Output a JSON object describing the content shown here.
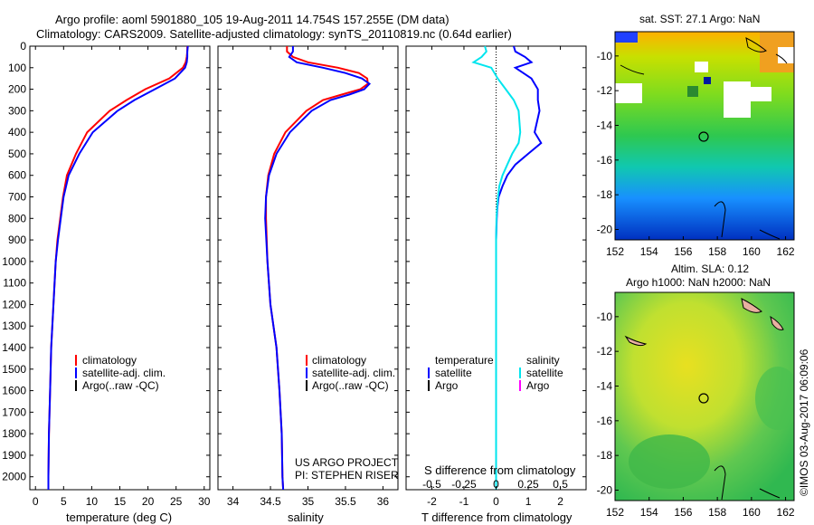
{
  "header": {
    "title_line1": "Argo profile: aoml 5901880_105 19-Aug-2011 14.754S 157.255E (DM data)",
    "title_line2": "Climatology: CARS2009. Satellite-adjusted climatology: synTS_20110819.nc (0.64d earlier)"
  },
  "colors": {
    "climatology": "#ff0000",
    "satellite": "#0000ff",
    "argo": "#000000",
    "salinity_sat": "#00e5ee",
    "salinity_argo": "#ff00ff"
  },
  "chart_data": [
    {
      "type": "line",
      "id": "temperature",
      "xlabel": "temperature (deg C)",
      "xlim": [
        -1,
        31
      ],
      "xticks": [
        0,
        5,
        10,
        15,
        20,
        25,
        30
      ],
      "ylim": [
        2060,
        0
      ],
      "yticks": [
        0,
        100,
        200,
        300,
        400,
        500,
        600,
        700,
        800,
        900,
        1000,
        1100,
        1200,
        1300,
        1400,
        1500,
        1600,
        1700,
        1800,
        1900,
        2000
      ],
      "legend": {
        "placement": "lower-left",
        "items": [
          "climatology",
          "satellite-adj. clim.",
          "Argo(..raw -QC)"
        ]
      },
      "series": [
        {
          "name": "climatology",
          "y": [
            0,
            25,
            50,
            75,
            100,
            150,
            200,
            250,
            300,
            400,
            500,
            600,
            700,
            800,
            900,
            1000,
            1200,
            1400,
            1600,
            1800,
            2000,
            2060
          ],
          "values": [
            27.0,
            27.0,
            26.9,
            26.7,
            26.2,
            23.8,
            19.5,
            16.2,
            13.2,
            9.2,
            7.2,
            5.6,
            4.9,
            4.4,
            3.9,
            3.6,
            3.2,
            2.8,
            2.6,
            2.4,
            2.3,
            2.3
          ]
        },
        {
          "name": "satellite-adj. clim.",
          "y": [
            0,
            25,
            50,
            75,
            100,
            150,
            200,
            250,
            300,
            400,
            500,
            600,
            700,
            800,
            900,
            1000,
            1200,
            1400,
            1600,
            1800,
            2000,
            2060
          ],
          "values": [
            27.1,
            27.0,
            27.0,
            26.9,
            26.6,
            24.8,
            21.2,
            17.6,
            14.6,
            10.2,
            7.8,
            5.9,
            5.0,
            4.5,
            4.0,
            3.6,
            3.2,
            2.8,
            2.6,
            2.4,
            2.3,
            2.3
          ]
        }
      ]
    },
    {
      "type": "line",
      "id": "salinity",
      "xlabel": "salinity",
      "xlim": [
        33.8,
        36.2
      ],
      "xticks": [
        34,
        34.5,
        35,
        35.5,
        36
      ],
      "ylim": [
        2060,
        0
      ],
      "legend": {
        "placement": "lower-right",
        "items": [
          "climatology",
          "satellite-adj. clim.",
          "Argo(..raw -QC)"
        ]
      },
      "annotations": [
        "US ARGO PROJECT",
        "PI: STEPHEN RISER"
      ],
      "series": [
        {
          "name": "climatology",
          "y": [
            0,
            25,
            50,
            75,
            100,
            125,
            150,
            175,
            200,
            225,
            250,
            300,
            400,
            500,
            600,
            700,
            800,
            1000,
            1200,
            1400,
            1600,
            1800,
            2000,
            2060
          ],
          "values": [
            34.72,
            34.72,
            34.8,
            35.0,
            35.4,
            35.68,
            35.79,
            35.8,
            35.7,
            35.45,
            35.2,
            34.98,
            34.7,
            34.55,
            34.47,
            34.44,
            34.44,
            34.46,
            34.5,
            34.58,
            34.62,
            34.65,
            34.66,
            34.67
          ]
        },
        {
          "name": "satellite-adj. clim.",
          "y": [
            0,
            25,
            50,
            75,
            100,
            125,
            150,
            175,
            200,
            225,
            250,
            300,
            400,
            500,
            600,
            700,
            800,
            1000,
            1200,
            1400,
            1600,
            1800,
            2000,
            2060
          ],
          "values": [
            34.8,
            34.8,
            34.75,
            34.85,
            35.2,
            35.5,
            35.72,
            35.82,
            35.75,
            35.55,
            35.3,
            35.05,
            34.76,
            34.58,
            34.48,
            34.44,
            34.43,
            34.46,
            34.5,
            34.58,
            34.62,
            34.65,
            34.66,
            34.67
          ]
        }
      ]
    },
    {
      "type": "line",
      "id": "difference",
      "xlabel_bottom": "T difference from climatology",
      "xlabel_top": "S difference from climatology",
      "xlim": [
        -2.8,
        2.8
      ],
      "xticks_T": [
        -2,
        -1,
        0,
        1,
        2
      ],
      "xticks_S_labels": [
        "-0.5",
        "-0.25",
        "0",
        "0.25",
        "0.5"
      ],
      "legend": {
        "placement": "lower",
        "columns": [
          {
            "header": "temperature",
            "items": [
              "satellite",
              "Argo"
            ]
          },
          {
            "header": "salinity",
            "items": [
              "satellite",
              "Argo"
            ]
          }
        ]
      },
      "series": [
        {
          "name": "temperature satellite",
          "y": [
            0,
            25,
            50,
            75,
            100,
            150,
            200,
            250,
            300,
            400,
            450,
            500,
            550,
            600,
            650,
            700,
            750,
            800,
            900,
            1000,
            1200,
            1400,
            1600,
            1800,
            2000,
            2060
          ],
          "values": [
            0.55,
            0.6,
            0.9,
            1.1,
            0.6,
            1.1,
            1.3,
            1.3,
            1.35,
            1.2,
            1.4,
            1.0,
            0.6,
            0.35,
            0.2,
            0.08,
            0.04,
            0.02,
            0.0,
            0.0,
            0.0,
            0.0,
            0.0,
            0.0,
            0.0,
            0.0
          ]
        },
        {
          "name": "salinity satellite",
          "y": [
            0,
            25,
            50,
            75,
            100,
            150,
            200,
            250,
            300,
            400,
            450,
            500,
            550,
            600,
            650,
            700,
            750,
            800,
            900,
            1000,
            1200,
            1400,
            1600,
            1800,
            2000,
            2060
          ],
          "values": [
            -0.35,
            -0.3,
            -0.45,
            -0.7,
            -0.15,
            0.05,
            0.3,
            0.55,
            0.7,
            0.75,
            0.7,
            0.5,
            0.35,
            0.2,
            0.1,
            0.06,
            0.03,
            0.01,
            0.0,
            0.0,
            0.0,
            0.0,
            0.0,
            0.0,
            0.0,
            0.0
          ]
        }
      ]
    },
    {
      "type": "heatmap",
      "id": "sst_map",
      "title": "sat. SST: 27.1 Argo: NaN",
      "xticks": [
        152,
        154,
        156,
        158,
        160,
        162
      ],
      "yticks": [
        -10,
        -12,
        -14,
        -16,
        -18,
        -20
      ],
      "xlim": [
        152,
        162.5
      ],
      "ylim": [
        -20.6,
        -8.6
      ],
      "marker": {
        "lon": 157.255,
        "lat": -14.754
      }
    },
    {
      "type": "heatmap",
      "id": "sla_map",
      "title": "Altim. SLA: 0.12",
      "subtitle": "Argo h1000: NaN h2000: NaN",
      "xticks": [
        152,
        154,
        156,
        158,
        160,
        162
      ],
      "yticks": [
        -10,
        -12,
        -14,
        -16,
        -18,
        -20
      ],
      "xlim": [
        152,
        162.5
      ],
      "ylim": [
        -20.6,
        -8.6
      ],
      "marker": {
        "lon": 157.255,
        "lat": -14.754
      }
    }
  ],
  "credit": "©IMOS 03-Aug-2017 06:09:06"
}
